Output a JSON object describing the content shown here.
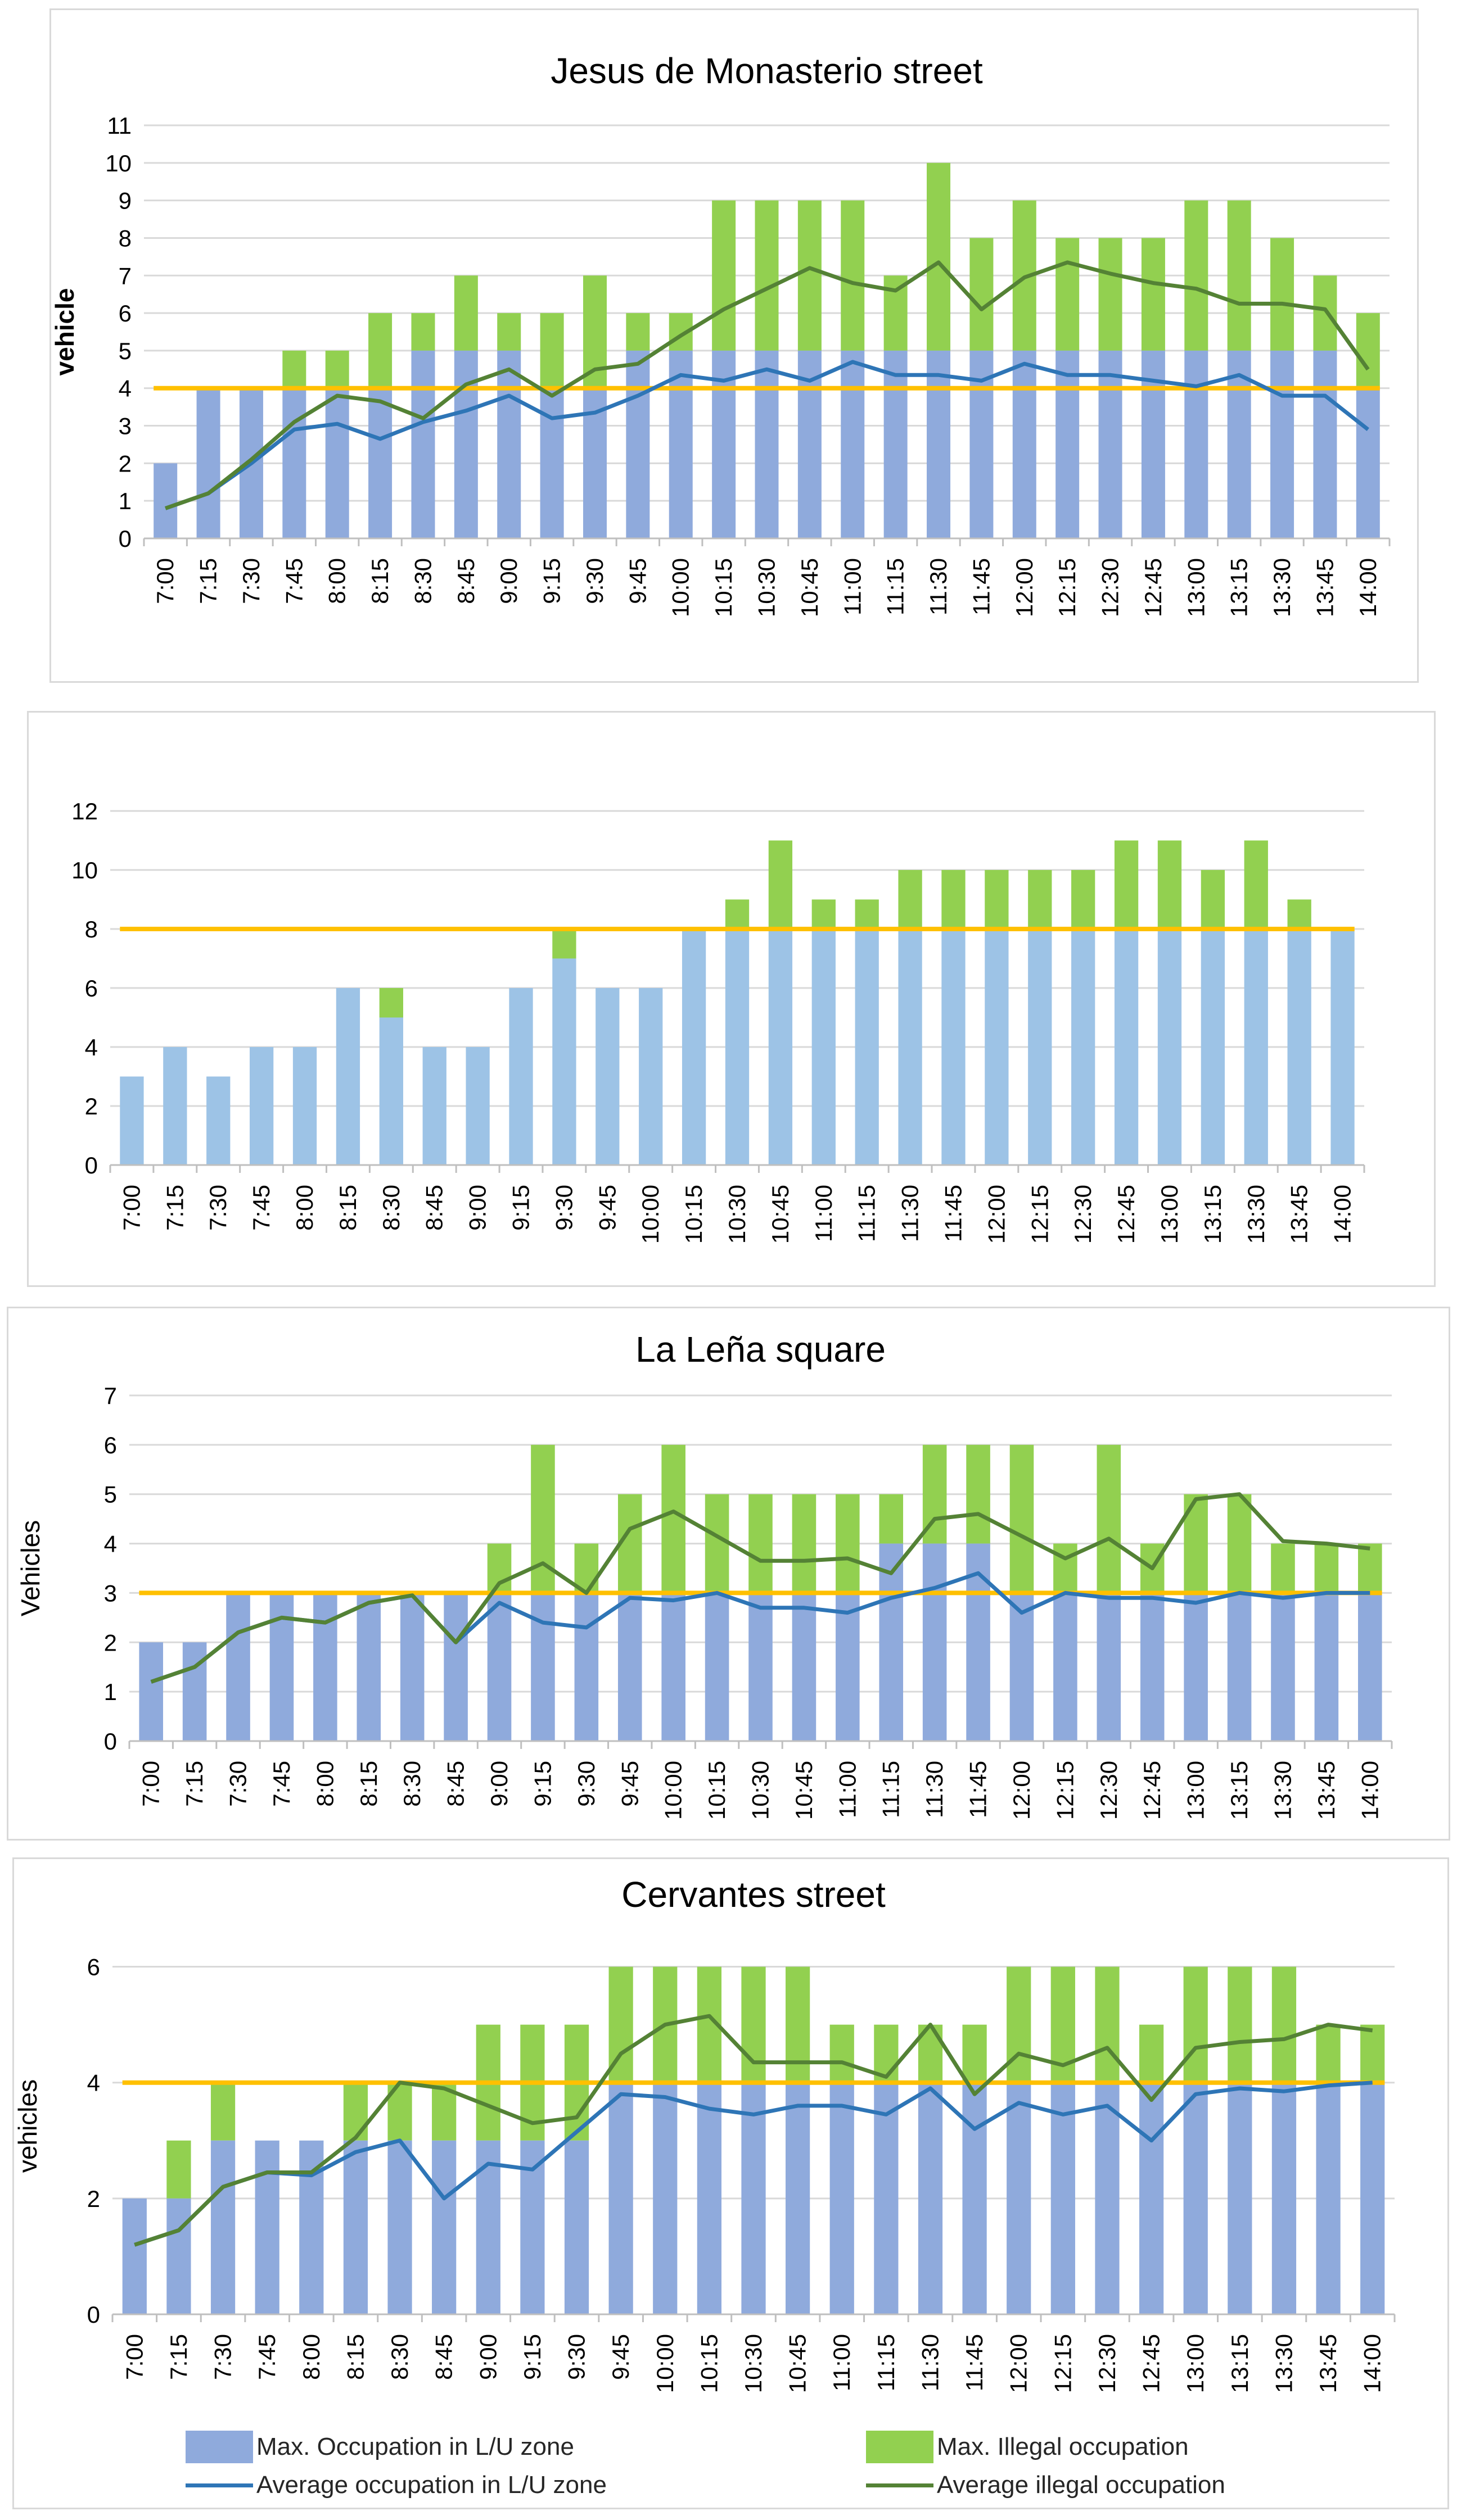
{
  "colors": {
    "lu_bar": "#8faadc",
    "lu_bar_light": "#9dc3e6",
    "illegal_bar": "#92d050",
    "avg_lu_line": "#2e75b6",
    "avg_illegal_line": "#548235",
    "capacity_line": "#ffc000",
    "grid": "#d9d9d9",
    "axis_text": "#000000"
  },
  "legend": {
    "max_lu": "Max. Occupation in L/U zone",
    "max_illegal": "Max. Illegal occupation",
    "avg_lu": "Average occupation in L/U zone",
    "avg_illegal": "Average illegal occupation"
  },
  "chart_data": [
    {
      "type": "bar",
      "title": "Jesus de Monasterio street",
      "ylabel": "vehicle",
      "xlabel": "",
      "ylim": [
        0,
        11
      ],
      "yticks": [
        0,
        1,
        2,
        3,
        4,
        5,
        6,
        7,
        8,
        9,
        10,
        11
      ],
      "capacity": 4,
      "categories": [
        "7:00",
        "7:15",
        "7:30",
        "7:45",
        "8:00",
        "8:15",
        "8:30",
        "8:45",
        "9:00",
        "9:15",
        "9:30",
        "9:45",
        "10:00",
        "10:15",
        "10:30",
        "10:45",
        "11:00",
        "11:15",
        "11:30",
        "11:45",
        "12:00",
        "12:15",
        "12:30",
        "12:45",
        "13:00",
        "13:15",
        "13:30",
        "13:45",
        "14:00"
      ],
      "series": [
        {
          "name": "Max. Occupation in L/U zone",
          "kind": "bar",
          "values": [
            2,
            4,
            4,
            4,
            4,
            4,
            5,
            5,
            5,
            4,
            4,
            5,
            5,
            5,
            5,
            5,
            5,
            5,
            5,
            5,
            5,
            5,
            5,
            5,
            5,
            5,
            5,
            5,
            4
          ]
        },
        {
          "name": "Max. Illegal occupation",
          "kind": "bar_top",
          "values": [
            2,
            4,
            4,
            5,
            5,
            6,
            6,
            7,
            6,
            6,
            7,
            6,
            6,
            9,
            9,
            9,
            9,
            7,
            10,
            8,
            9,
            8,
            8,
            8,
            9,
            9,
            8,
            7,
            6
          ]
        },
        {
          "name": "Average occupation in L/U zone",
          "kind": "line",
          "values": [
            0.8,
            1.2,
            2.0,
            2.9,
            3.05,
            2.65,
            3.1,
            3.4,
            3.8,
            3.2,
            3.35,
            3.8,
            4.35,
            4.2,
            4.5,
            4.2,
            4.7,
            4.35,
            4.35,
            4.2,
            4.65,
            4.35,
            4.35,
            4.2,
            4.05,
            4.35,
            3.8,
            3.8,
            2.9
          ]
        },
        {
          "name": "Average illegal occupation",
          "kind": "line",
          "values": [
            0.8,
            1.2,
            2.1,
            3.1,
            3.8,
            3.65,
            3.2,
            4.1,
            4.5,
            3.8,
            4.5,
            4.65,
            5.4,
            6.1,
            6.65,
            7.2,
            6.8,
            6.6,
            7.35,
            6.1,
            6.95,
            7.35,
            7.05,
            6.8,
            6.65,
            6.25,
            6.25,
            6.1,
            4.5
          ]
        }
      ]
    },
    {
      "type": "bar",
      "title": "",
      "ylabel": "",
      "xlabel": "",
      "ylim": [
        0,
        12
      ],
      "yticks": [
        0,
        2,
        4,
        6,
        8,
        10,
        12
      ],
      "capacity": 8,
      "categories": [
        "7:00",
        "7:15",
        "7:30",
        "7:45",
        "8:00",
        "8:15",
        "8:30",
        "8:45",
        "9:00",
        "9:15",
        "9:30",
        "9:45",
        "10:00",
        "10:15",
        "10:30",
        "10:45",
        "11:00",
        "11:15",
        "11:30",
        "11:45",
        "12:00",
        "12:15",
        "12:30",
        "12:45",
        "13:00",
        "13:15",
        "13:30",
        "13:45",
        "14:00"
      ],
      "series": [
        {
          "name": "Max. Occupation in L/U zone",
          "kind": "bar",
          "values": [
            3,
            4,
            3,
            4,
            4,
            6,
            5,
            4,
            4,
            6,
            7,
            6,
            6,
            8,
            8,
            8,
            8,
            8,
            8,
            8,
            8,
            8,
            8,
            8,
            8,
            8,
            8,
            8,
            8
          ]
        },
        {
          "name": "Max. Illegal occupation",
          "kind": "bar_top",
          "values": [
            3,
            4,
            3,
            4,
            4,
            6,
            6,
            4,
            4,
            6,
            8,
            6,
            6,
            8,
            9,
            11,
            9,
            9,
            10,
            10,
            10,
            10,
            10,
            11,
            11,
            10,
            11,
            9,
            8
          ]
        }
      ]
    },
    {
      "type": "bar",
      "title": "La Leña square",
      "ylabel": "Vehicles",
      "xlabel": "",
      "ylim": [
        0,
        7
      ],
      "yticks": [
        0,
        1,
        2,
        3,
        4,
        5,
        6,
        7
      ],
      "capacity": 3,
      "categories": [
        "7:00",
        "7:15",
        "7:30",
        "7:45",
        "8:00",
        "8:15",
        "8:30",
        "8:45",
        "9:00",
        "9:15",
        "9:30",
        "9:45",
        "10:00",
        "10:15",
        "10:30",
        "10:45",
        "11:00",
        "11:15",
        "11:30",
        "11:45",
        "12:00",
        "12:15",
        "12:30",
        "12:45",
        "13:00",
        "13:15",
        "13:30",
        "13:45",
        "14:00"
      ],
      "series": [
        {
          "name": "Max. Occupation in L/U zone",
          "kind": "bar",
          "values": [
            2,
            2,
            3,
            3,
            3,
            3,
            3,
            3,
            3,
            3,
            3,
            3,
            3,
            3,
            3,
            3,
            3,
            4,
            4,
            4,
            3,
            3,
            3,
            3,
            3,
            3,
            3,
            3,
            3
          ]
        },
        {
          "name": "Max. Illegal occupation",
          "kind": "bar_top",
          "values": [
            2,
            2,
            3,
            3,
            3,
            3,
            3,
            3,
            4,
            6,
            4,
            5,
            6,
            5,
            5,
            5,
            5,
            5,
            6,
            6,
            6,
            4,
            6,
            4,
            5,
            5,
            4,
            4,
            4
          ]
        },
        {
          "name": "Average occupation in L/U zone",
          "kind": "line",
          "values": [
            1.2,
            1.5,
            2.2,
            2.5,
            2.4,
            2.8,
            2.95,
            2.0,
            2.8,
            2.4,
            2.3,
            2.9,
            2.85,
            3.0,
            2.7,
            2.7,
            2.6,
            2.9,
            3.1,
            3.4,
            2.6,
            3.0,
            2.9,
            2.9,
            2.8,
            3.0,
            2.9,
            3.0,
            3.0
          ]
        },
        {
          "name": "Average illegal occupation",
          "kind": "line",
          "values": [
            1.2,
            1.5,
            2.2,
            2.5,
            2.4,
            2.8,
            2.95,
            2.0,
            3.2,
            3.6,
            3.0,
            4.3,
            4.65,
            4.15,
            3.65,
            3.65,
            3.7,
            3.4,
            4.5,
            4.6,
            4.15,
            3.7,
            4.1,
            3.5,
            4.9,
            5.0,
            4.05,
            4.0,
            3.9
          ]
        }
      ]
    },
    {
      "type": "bar",
      "title": "Cervantes street",
      "ylabel": "vehicles",
      "xlabel": "",
      "ylim": [
        0,
        6.5
      ],
      "yticks": [
        0,
        2,
        4,
        6
      ],
      "capacity": 4,
      "categories": [
        "7:00",
        "7:15",
        "7:30",
        "7:45",
        "8:00",
        "8:15",
        "8:30",
        "8:45",
        "9:00",
        "9:15",
        "9:30",
        "9:45",
        "10:00",
        "10:15",
        "10:30",
        "10:45",
        "11:00",
        "11:15",
        "11:30",
        "11:45",
        "12:00",
        "12:15",
        "12:30",
        "12:45",
        "13:00",
        "13:15",
        "13:30",
        "13:45",
        "14:00"
      ],
      "series": [
        {
          "name": "Max. Occupation in L/U zone",
          "kind": "bar",
          "values": [
            2,
            2,
            3,
            3,
            3,
            3,
            3,
            3,
            3,
            3,
            3,
            4,
            4,
            4,
            4,
            4,
            4,
            4,
            4,
            4,
            4,
            4,
            4,
            4,
            4,
            4,
            4,
            4,
            4
          ]
        },
        {
          "name": "Max. Illegal occupation",
          "kind": "bar_top",
          "values": [
            2,
            3,
            4,
            3,
            3,
            4,
            4,
            4,
            5,
            5,
            5,
            6,
            6,
            6,
            6,
            6,
            5,
            5,
            5,
            5,
            6,
            6,
            6,
            5,
            6,
            6,
            6,
            5,
            5
          ]
        },
        {
          "name": "Average occupation in L/U zone",
          "kind": "line",
          "values": [
            1.2,
            1.45,
            2.2,
            2.45,
            2.4,
            2.8,
            3.0,
            2.0,
            2.6,
            2.5,
            3.15,
            3.8,
            3.75,
            3.55,
            3.45,
            3.6,
            3.6,
            3.45,
            3.9,
            3.2,
            3.65,
            3.45,
            3.6,
            3.0,
            3.8,
            3.9,
            3.85,
            3.95,
            4.0
          ]
        },
        {
          "name": "Average illegal occupation",
          "kind": "line",
          "values": [
            1.2,
            1.45,
            2.2,
            2.45,
            2.45,
            3.05,
            4.0,
            3.9,
            3.6,
            3.3,
            3.4,
            4.5,
            5.0,
            5.15,
            4.35,
            4.35,
            4.35,
            4.1,
            5.0,
            3.8,
            4.5,
            4.3,
            4.6,
            3.7,
            4.6,
            4.7,
            4.75,
            5.0,
            4.9
          ]
        }
      ]
    }
  ]
}
